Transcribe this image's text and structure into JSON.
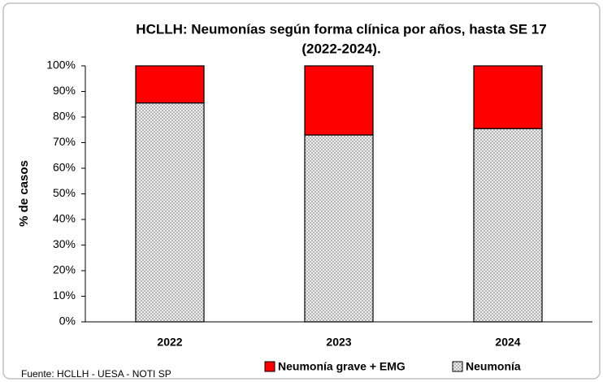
{
  "chart_data": {
    "type": "stacked_bar",
    "title": [
      "HCLLH: Neumonías según forma clínica por años, hasta SE 17",
      "(2022-2024)."
    ],
    "y_label": "% de casos",
    "source": "Fuente: HCLLH - UESA - NOTI SP",
    "categories": [
      "2022",
      "2023",
      "2024"
    ],
    "series": [
      {
        "name": "Neumonía",
        "color": "#d9d9d9",
        "values": [
          85.5,
          73,
          75.5
        ]
      },
      {
        "name": "Neumonía grave + EMG",
        "color": "#ff0000",
        "values": [
          14.5,
          27,
          24.5
        ]
      }
    ],
    "ylim": [
      0,
      100
    ],
    "yticks": [
      {
        "value": 0,
        "label": "0%"
      },
      {
        "value": 10,
        "label": "10%"
      },
      {
        "value": 20,
        "label": "20%"
      },
      {
        "value": 30,
        "label": "30%"
      },
      {
        "value": 40,
        "label": "40%"
      },
      {
        "value": 50,
        "label": "50%"
      },
      {
        "value": 60,
        "label": "60%"
      },
      {
        "value": 70,
        "label": "70%"
      },
      {
        "value": 80,
        "label": "80%"
      },
      {
        "value": 90,
        "label": "90%"
      },
      {
        "value": 100,
        "label": "100%"
      }
    ],
    "legend": "bottom"
  }
}
